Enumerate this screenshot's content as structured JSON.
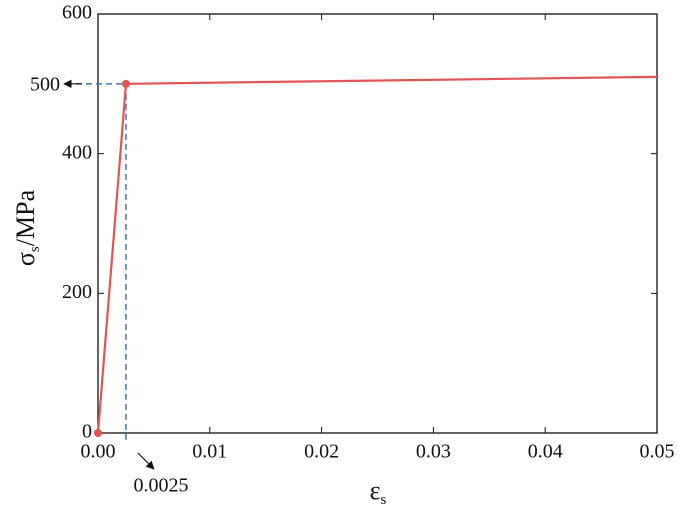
{
  "chart_data": {
    "type": "line",
    "ylabel": [
      "σ",
      "s",
      "/MPa"
    ],
    "xlabel": [
      "ε",
      "s"
    ],
    "x": [
      0,
      0.0025,
      0.05
    ],
    "series": [
      {
        "color": "#e05555",
        "values": [
          0,
          500,
          510
        ]
      }
    ],
    "markers": {
      "x": [
        0,
        0.0025
      ],
      "values": [
        0,
        500
      ],
      "color": "#e05555"
    },
    "xlim": [
      0,
      0.05
    ],
    "ylim": [
      0,
      600
    ],
    "xticks": [
      {
        "value": 0,
        "label": "0.00"
      },
      0.01,
      0.02,
      0.03,
      0.04,
      0.05
    ],
    "yticks": [
      0,
      200,
      400,
      600
    ],
    "x_annotation": {
      "value": 0.0025,
      "label": "0.0025"
    },
    "y_annotation": {
      "value": 500,
      "label": "500"
    },
    "guide_color": "#3a78b0"
  }
}
